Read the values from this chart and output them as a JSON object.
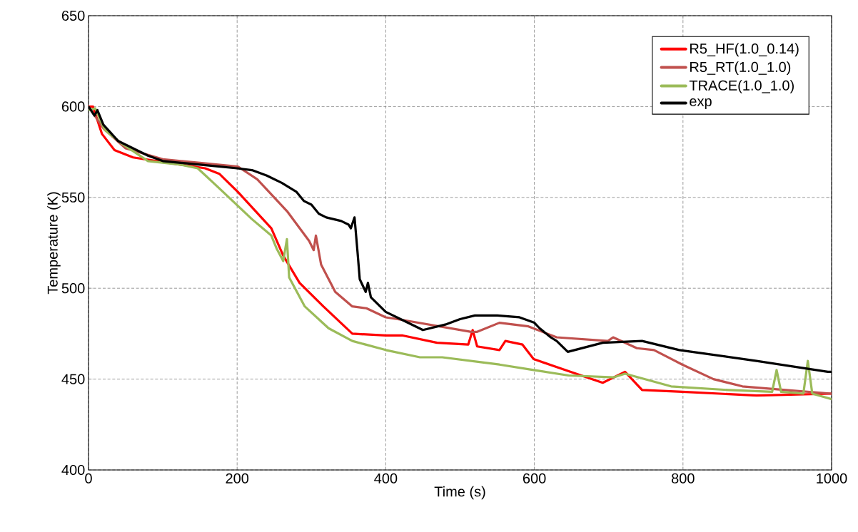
{
  "chart_data": {
    "type": "line",
    "xlabel": "Time (s)",
    "ylabel": "Temperature (K)",
    "xlim": [
      0,
      1000
    ],
    "ylim": [
      400,
      650
    ],
    "xticks": [
      0,
      200,
      400,
      600,
      800,
      1000
    ],
    "yticks": [
      400,
      450,
      500,
      550,
      600,
      650
    ],
    "grid": true,
    "legend": "top right",
    "series": [
      {
        "name": "R5_HF(1.0_0.14)",
        "color": "#ff0000",
        "x": [
          0,
          6,
          18,
          35,
          60,
          92,
          157,
          176,
          201,
          246,
          262,
          284,
          316,
          355,
          400,
          423,
          469,
          511,
          517,
          523,
          553,
          561,
          584,
          599,
          649,
          692,
          722,
          745,
          799,
          899,
          1000
        ],
        "values": [
          600,
          600,
          585,
          576,
          572,
          570,
          566,
          563,
          553,
          533,
          518,
          503,
          490,
          475,
          474,
          474,
          470,
          469,
          477,
          468,
          466,
          471,
          469,
          461,
          454,
          448,
          454,
          444,
          443,
          441,
          442
        ]
      },
      {
        "name": "R5_RT(1.0_1.0)",
        "color": "#c0504d",
        "x": [
          0,
          20,
          50,
          100,
          150,
          201,
          227,
          268,
          297,
          303,
          306,
          313,
          332,
          355,
          374,
          400,
          416,
          515,
          523,
          553,
          592,
          630,
          699,
          706,
          738,
          761,
          799,
          841,
          880,
          938,
          1000
        ],
        "values": [
          600,
          588,
          577,
          571,
          569,
          567,
          560,
          542,
          526,
          521,
          529,
          513,
          498,
          490,
          489,
          484,
          483,
          476,
          476,
          481,
          479,
          473,
          471,
          473,
          467,
          466,
          458,
          450,
          446,
          444,
          442
        ]
      },
      {
        "name": "TRACE(1.0_1.0)",
        "color": "#9bbb59",
        "x": [
          0,
          9,
          22,
          47,
          80,
          124,
          147,
          176,
          220,
          246,
          253,
          262,
          267,
          270,
          291,
          323,
          355,
          400,
          446,
          476,
          553,
          599,
          646,
          707,
          722,
          784,
          861,
          920,
          926,
          932,
          962,
          968,
          974,
          1000
        ],
        "values": [
          598,
          599,
          587,
          579,
          570,
          568,
          566,
          555,
          538,
          529,
          522,
          515,
          527,
          506,
          490,
          478,
          471,
          466,
          462,
          462,
          458,
          455,
          452,
          451,
          453,
          446,
          444,
          443,
          455,
          443,
          442,
          460,
          442,
          439
        ]
      },
      {
        "name": "exp",
        "color": "#000000",
        "x": [
          0,
          8,
          12,
          20,
          40,
          80,
          100,
          150,
          200,
          220,
          240,
          260,
          280,
          290,
          300,
          310,
          320,
          340,
          350,
          353,
          358,
          362,
          365,
          373,
          376,
          380,
          400,
          420,
          450,
          480,
          500,
          520,
          550,
          580,
          600,
          607,
          622,
          630,
          645,
          692,
          745,
          795,
          899,
          995,
          1000
        ],
        "values": [
          600,
          595,
          598,
          590,
          581,
          573,
          570,
          568,
          566,
          565,
          562,
          558,
          553,
          548,
          546,
          541,
          539,
          537,
          535,
          533,
          539,
          520,
          505,
          498,
          503,
          495,
          487,
          483,
          477,
          480,
          483,
          485,
          485,
          484,
          481,
          478,
          473,
          471,
          465,
          470,
          471,
          466,
          460,
          454,
          454
        ]
      }
    ]
  }
}
